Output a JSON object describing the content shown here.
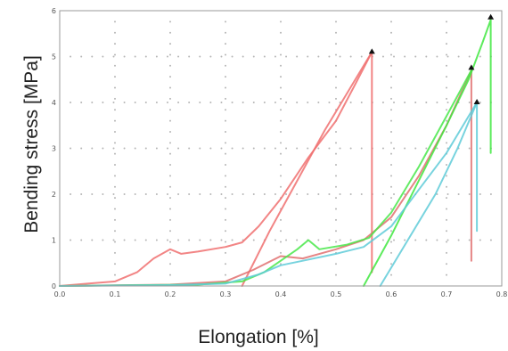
{
  "chart_data": {
    "type": "line",
    "xlabel": "Elongation [%]",
    "ylabel": "Bending stress [MPa]",
    "xlim": [
      0,
      0.8
    ],
    "ylim": [
      0,
      6
    ],
    "x_ticks": [
      "0.0",
      "0.1",
      "0.2",
      "0.3",
      "0.4",
      "0.5",
      "0.6",
      "0.7",
      "0.8"
    ],
    "y_ticks": [
      "0",
      "1",
      "2",
      "3",
      "4",
      "5",
      "6"
    ],
    "grid": "dotted",
    "series": [
      {
        "color": "#f07070",
        "points": [
          [
            0.0,
            0.0
          ],
          [
            0.05,
            0.05
          ],
          [
            0.1,
            0.1
          ],
          [
            0.14,
            0.3
          ],
          [
            0.17,
            0.6
          ],
          [
            0.2,
            0.8
          ],
          [
            0.22,
            0.7
          ],
          [
            0.25,
            0.75
          ],
          [
            0.3,
            0.85
          ],
          [
            0.33,
            0.95
          ],
          [
            0.36,
            1.3
          ],
          [
            0.4,
            1.9
          ],
          [
            0.45,
            2.8
          ],
          [
            0.5,
            3.6
          ],
          [
            0.535,
            4.4
          ],
          [
            0.565,
            5.1
          ]
        ],
        "drop_to": 0.3
      },
      {
        "color": "#f07070",
        "points": [
          [
            0.33,
            0.0
          ],
          [
            0.38,
            1.2
          ],
          [
            0.43,
            2.3
          ],
          [
            0.48,
            3.4
          ],
          [
            0.53,
            4.4
          ],
          [
            0.565,
            5.1
          ]
        ]
      },
      {
        "color": "#e07070",
        "points": [
          [
            0.0,
            0.0
          ],
          [
            0.2,
            0.03
          ],
          [
            0.3,
            0.1
          ],
          [
            0.35,
            0.35
          ],
          [
            0.4,
            0.65
          ],
          [
            0.44,
            0.6
          ],
          [
            0.5,
            0.8
          ],
          [
            0.55,
            1.0
          ],
          [
            0.6,
            1.5
          ],
          [
            0.65,
            2.4
          ],
          [
            0.7,
            3.5
          ],
          [
            0.745,
            4.7
          ]
        ],
        "drop_to": 0.55
      },
      {
        "color": "#49e84a",
        "points": [
          [
            0.0,
            0.0
          ],
          [
            0.25,
            0.03
          ],
          [
            0.33,
            0.1
          ],
          [
            0.37,
            0.3
          ],
          [
            0.4,
            0.55
          ],
          [
            0.43,
            0.8
          ],
          [
            0.45,
            1.0
          ],
          [
            0.47,
            0.8
          ],
          [
            0.52,
            0.9
          ],
          [
            0.56,
            1.05
          ],
          [
            0.6,
            1.6
          ],
          [
            0.65,
            2.6
          ],
          [
            0.7,
            3.7
          ],
          [
            0.745,
            4.7
          ]
        ]
      },
      {
        "color": "#3fe83f",
        "points": [
          [
            0.55,
            0.0
          ],
          [
            0.6,
            1.1
          ],
          [
            0.65,
            2.3
          ],
          [
            0.7,
            3.5
          ],
          [
            0.74,
            4.5
          ],
          [
            0.765,
            5.3
          ],
          [
            0.78,
            5.8
          ]
        ],
        "drop_to": 2.9
      },
      {
        "color": "#5fcbd8",
        "points": [
          [
            0.0,
            0.0
          ],
          [
            0.2,
            0.02
          ],
          [
            0.3,
            0.05
          ],
          [
            0.36,
            0.25
          ],
          [
            0.4,
            0.45
          ],
          [
            0.44,
            0.55
          ],
          [
            0.5,
            0.7
          ],
          [
            0.55,
            0.85
          ],
          [
            0.6,
            1.3
          ],
          [
            0.65,
            2.1
          ],
          [
            0.7,
            2.9
          ],
          [
            0.735,
            3.6
          ],
          [
            0.755,
            4.0
          ]
        ],
        "drop_to": 1.2
      },
      {
        "color": "#5fcbd8",
        "points": [
          [
            0.58,
            0.0
          ],
          [
            0.63,
            1.0
          ],
          [
            0.68,
            2.0
          ],
          [
            0.72,
            3.0
          ],
          [
            0.755,
            4.0
          ]
        ]
      }
    ],
    "markers": [
      {
        "x": 0.565,
        "y": 5.1
      },
      {
        "x": 0.745,
        "y": 4.75
      },
      {
        "x": 0.755,
        "y": 4.0
      },
      {
        "x": 0.78,
        "y": 5.85
      }
    ]
  }
}
